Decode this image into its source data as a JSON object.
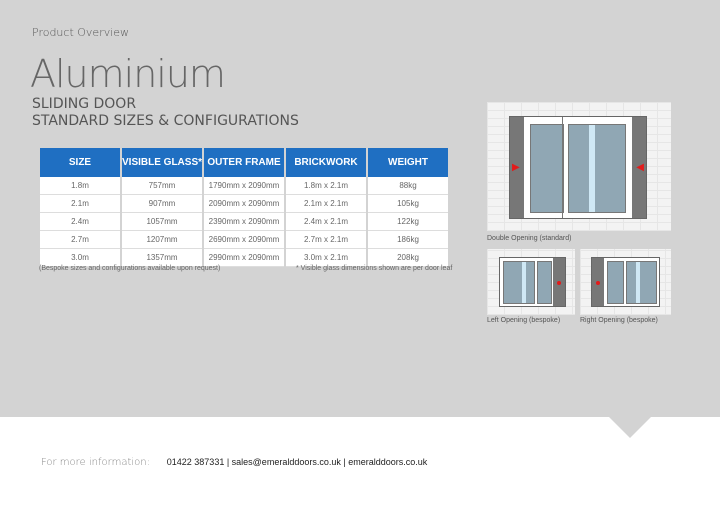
{
  "header": {
    "kicker": "Product Overview",
    "title": "Aluminium",
    "subtitle_1": "SLIDING DOOR",
    "subtitle_2": "STANDARD SIZES & CONFIGURATIONS"
  },
  "table": {
    "headers": [
      "SIZE",
      "VISIBLE GLASS*",
      "OUTER FRAME",
      "BRICKWORK",
      "WEIGHT"
    ],
    "rows": [
      [
        "1.8m",
        "757mm",
        "1790mm x 2090mm",
        "1.8m x 2.1m",
        "88kg"
      ],
      [
        "2.1m",
        "907mm",
        "2090mm x 2090mm",
        "2.1m x 2.1m",
        "105kg"
      ],
      [
        "2.4m",
        "1057mm",
        "2390mm x 2090mm",
        "2.4m x 2.1m",
        "122kg"
      ],
      [
        "2.7m",
        "1207mm",
        "2690mm x 2090mm",
        "2.7m x 2.1m",
        "186kg"
      ],
      [
        "3.0m",
        "1357mm",
        "2990mm x 2090mm",
        "3.0m x 2.1m",
        "208kg"
      ]
    ],
    "note_left": "(Bespoke sizes and configurations available upon request)",
    "note_right": "* Visible glass dimensions shown are per door leaf",
    "header_color": "#1f6fc2"
  },
  "diagrams": {
    "double": "Double Opening (standard)",
    "left": "Left Opening (bespoke)",
    "right": "Right Opening (bespoke)",
    "arrow_color": "#e31b1b"
  },
  "footer": {
    "label": "For more information:",
    "contact": "01422 387331 | sales@emeralddoors.co.uk | emeralddoors.co.uk"
  }
}
